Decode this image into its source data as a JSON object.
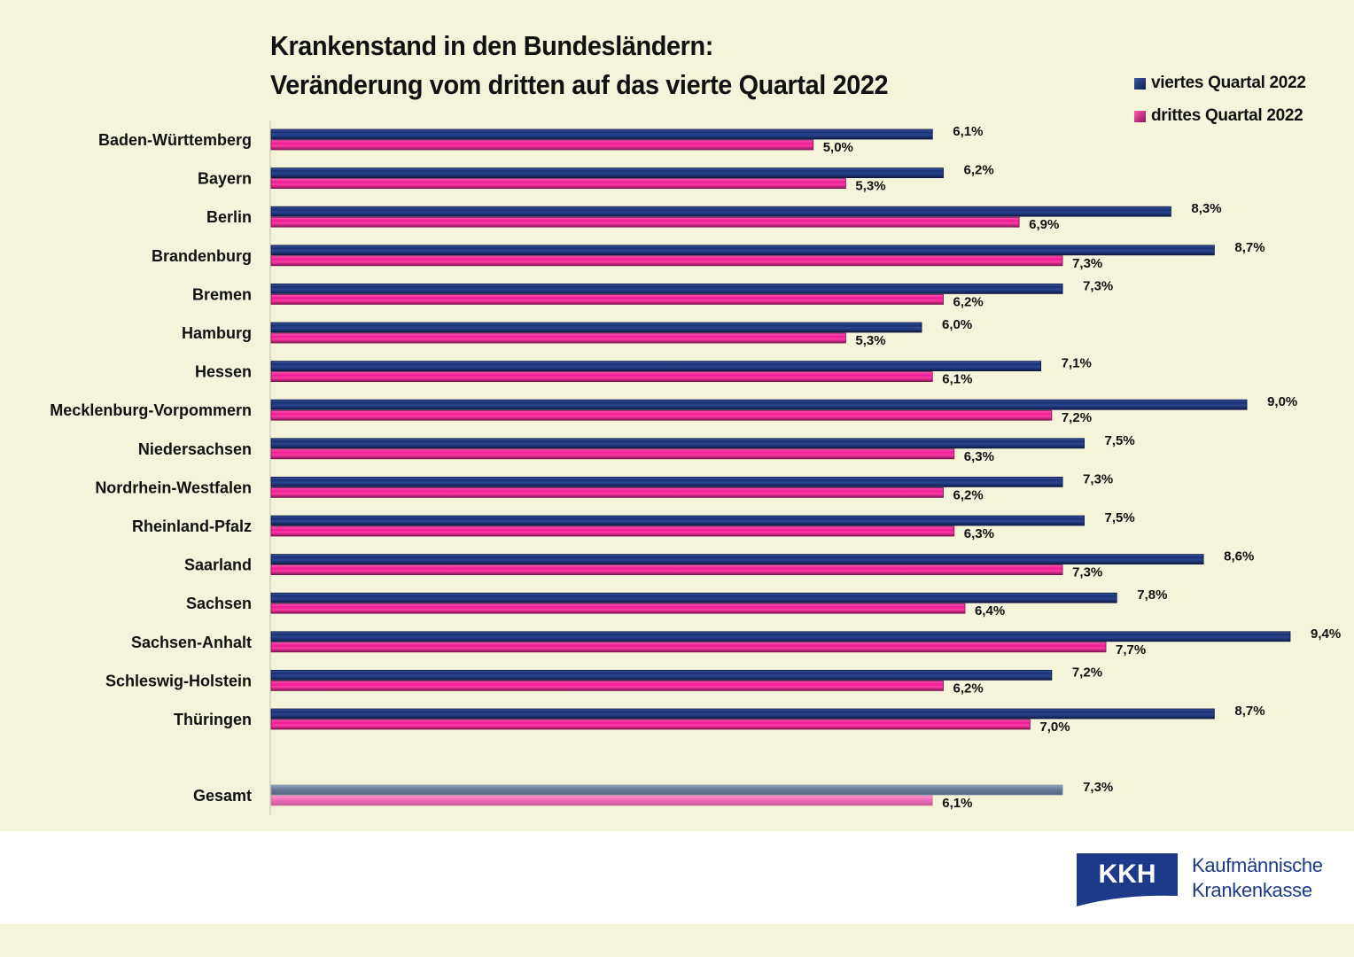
{
  "title": {
    "line1": "Krankenstand in den Bundesländern:",
    "line2": "Veränderung vom dritten auf das vierte Quartal 2022"
  },
  "legend": [
    {
      "label": "viertes Quartal 2022",
      "color": "#1a2e6e"
    },
    {
      "label": "drittes Quartal 2022",
      "color": "#e01a8c"
    }
  ],
  "colors": {
    "q4": "#1a2e6e",
    "q3": "#e81e90",
    "q4_total": "#6c7c9c",
    "q3_total": "#f06ab8",
    "background": "#f4f4da"
  },
  "logo": {
    "abbr": "KKH",
    "line1": "Kaufmännische",
    "line2": "Krankenkasse",
    "color": "#1d3a8a"
  },
  "chart_data": {
    "type": "bar",
    "orientation": "horizontal",
    "title": "Krankenstand in den Bundesländern: Veränderung vom dritten auf das vierte Quartal 2022",
    "xlabel": "",
    "ylabel": "",
    "unit": "%",
    "grid": false,
    "legend_position": "top-right",
    "xlim": [
      0,
      10
    ],
    "categories": [
      "Baden-Württemberg",
      "Bayern",
      "Berlin",
      "Brandenburg",
      "Bremen",
      "Hamburg",
      "Hessen",
      "Mecklenburg-Vorpommern",
      "Niedersachsen",
      "Nordrhein-Westfalen",
      "Rheinland-Pfalz",
      "Saarland",
      "Sachsen",
      "Sachsen-Anhalt",
      "Schleswig-Holstein",
      "Thüringen",
      "Gesamt"
    ],
    "series": [
      {
        "name": "viertes Quartal 2022",
        "values": [
          6.1,
          6.2,
          8.3,
          8.7,
          7.3,
          6.0,
          7.1,
          9.0,
          7.5,
          7.3,
          7.5,
          8.6,
          7.8,
          9.4,
          7.2,
          8.7,
          7.3
        ],
        "labels": [
          "6,1%",
          "6,2%",
          "8,3%",
          "8,7%",
          "7,3%",
          "6,0%",
          "7,1%",
          "9,0%",
          "7,5%",
          "7,3%",
          "7,5%",
          "8,6%",
          "7,8%",
          "9,4%",
          "7,2%",
          "8,7%",
          "7,3%"
        ]
      },
      {
        "name": "drittes Quartal 2022",
        "values": [
          5.0,
          5.3,
          6.9,
          7.3,
          6.2,
          5.3,
          6.1,
          7.2,
          6.3,
          6.2,
          6.3,
          7.3,
          6.4,
          7.7,
          6.2,
          7.0,
          6.1
        ],
        "labels": [
          "5,0%",
          "5,3%",
          "6,9%",
          "7,3%",
          "6,2%",
          "5,3%",
          "6,1%",
          "7,2%",
          "6,3%",
          "6,2%",
          "6,3%",
          "7,3%",
          "6,4%",
          "7,7%",
          "6,2%",
          "7,0%",
          "6,1%"
        ]
      }
    ]
  }
}
